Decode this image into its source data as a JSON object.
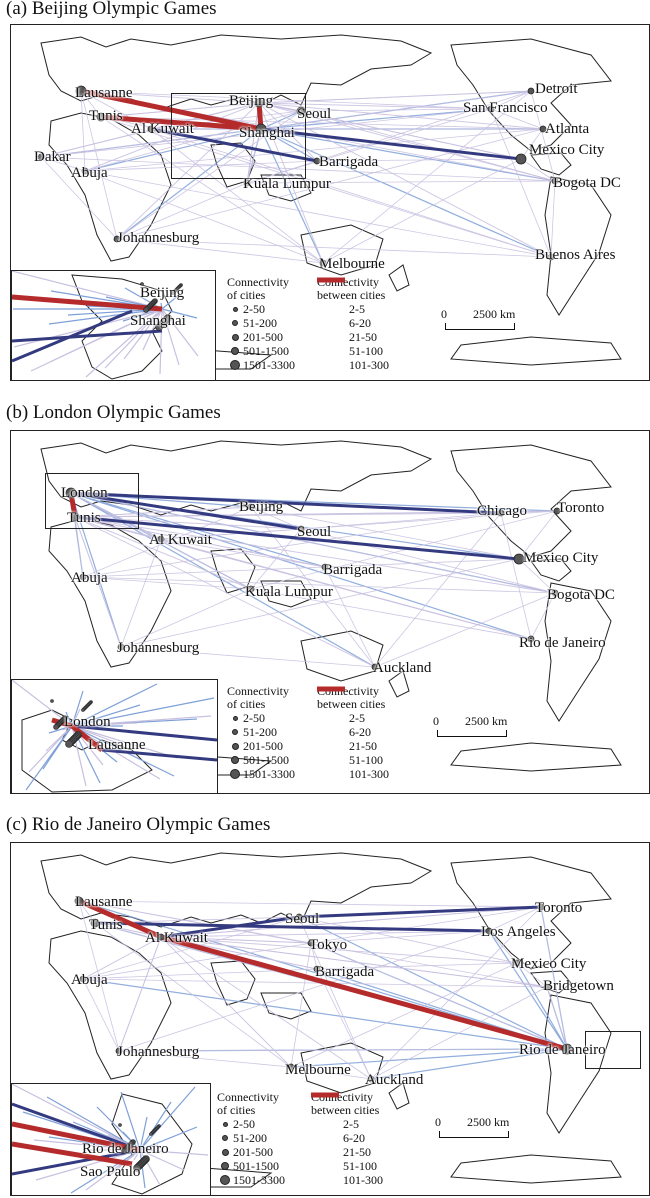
{
  "colors": {
    "ocean": "#ffffff",
    "land_outline": "#222222",
    "line_thin": "#c8c0e0",
    "line_mid": "#7ea0d8",
    "line_mid2": "#6a86d0",
    "line_dark": "#343a80",
    "line_top": "#b52b2b",
    "city_fill": "#555555"
  },
  "legend": {
    "cities_title_1": "Connectivity",
    "cities_title_2": "of cities",
    "cities": [
      "2-50",
      "51-200",
      "201-500",
      "501-1500",
      "1501-3300"
    ],
    "links_title_1": "Connectivity",
    "links_title_2": "between cities",
    "links": [
      "2-5",
      "6-20",
      "21-50",
      "51-100",
      "101-300"
    ]
  },
  "scale": {
    "zero": "0",
    "distance": "2500 km"
  },
  "panels": [
    {
      "title": "(a) Beijing Olympic Games",
      "cities": [
        "Lausanne",
        "Tunis",
        "Beijing",
        "Seoul",
        "Al Kuwait",
        "Shanghai",
        "Dakar",
        "Abuja",
        "Barrigada",
        "Kuala Lumpur",
        "Johannesburg",
        "Melbourne",
        "Detroit",
        "San Francisco",
        "Atlanta",
        "Mexico City",
        "Bogota DC",
        "Buenos Aires"
      ],
      "inset_cities": [
        "Beijing",
        "Shanghai"
      ]
    },
    {
      "title": "(b) London Olympic Games",
      "cities": [
        "London",
        "Tunis",
        "Beijing",
        "Seoul",
        "Al Kuwait",
        "Barrigada",
        "Abuja",
        "Kuala Lumpur",
        "Johannesburg",
        "Auckland",
        "Chicago",
        "Toronto",
        "Mexico City",
        "Bogota DC",
        "Rio de Janeiro"
      ],
      "inset_cities": [
        "London",
        "Lausanne"
      ]
    },
    {
      "title": "(c) Rio de Janeiro Olympic Games",
      "cities": [
        "Lausanne",
        "Tunis",
        "Seoul",
        "Al Kuwait",
        "Tokyo",
        "Barrigada",
        "Abuja",
        "Johannesburg",
        "Melbourne",
        "Auckland",
        "Toronto",
        "Los Angeles",
        "Mexico City",
        "Bridgetown",
        "Rio de Janeiro"
      ],
      "inset_cities": [
        "Rio de Janeiro",
        "Sao Paulo"
      ]
    }
  ]
}
